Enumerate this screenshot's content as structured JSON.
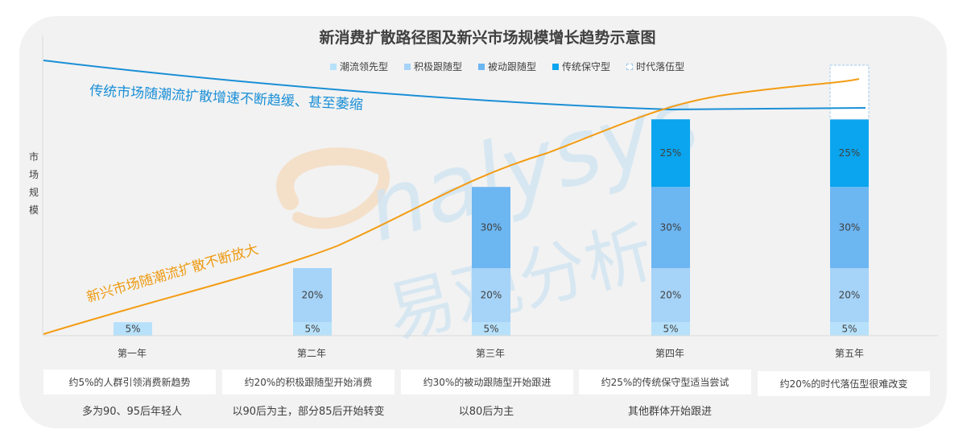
{
  "chart_data": {
    "type": "bar",
    "title": "新消费扩散路径图及新兴市场规模增长趋势示意图",
    "ylabel": "市场规模",
    "categories": [
      "第一年",
      "第二年",
      "第三年",
      "第四年",
      "第五年"
    ],
    "ylim": [
      0,
      100
    ],
    "series": [
      {
        "name": "潮流领先型",
        "color": "#b7e1fa",
        "values": [
          5,
          5,
          5,
          5,
          5
        ],
        "labels": [
          "5%",
          "5%",
          "5%",
          "5%",
          "5%"
        ]
      },
      {
        "name": "积极跟随型",
        "color": "#a6d3f8",
        "values": [
          0,
          20,
          20,
          20,
          20
        ],
        "labels": [
          "",
          "20%",
          "20%",
          "20%",
          "20%"
        ]
      },
      {
        "name": "被动跟随型",
        "color": "#6cb6f2",
        "values": [
          0,
          0,
          30,
          30,
          30
        ],
        "labels": [
          "",
          "",
          "30%",
          "30%",
          "30%"
        ]
      },
      {
        "name": "传统保守型",
        "color": "#0aa5ee",
        "values": [
          0,
          0,
          0,
          25,
          25
        ],
        "labels": [
          "",
          "",
          "",
          "25%",
          "25%"
        ]
      },
      {
        "name": "时代落伍型",
        "color": "#ffffff",
        "values": [
          0,
          0,
          0,
          0,
          20
        ],
        "labels": [
          "",
          "",
          "",
          "",
          ""
        ]
      }
    ],
    "lines": [
      {
        "name": "传统市场",
        "color": "#1a8fd6"
      },
      {
        "name": "新兴市场",
        "color": "#f39c12"
      }
    ],
    "annotations": {
      "traditional": "传统市场随潮流扩散增速不断趋缓、甚至萎缩",
      "emerging": "新兴市场随潮流扩散不断放大"
    }
  },
  "notes": [
    {
      "box": "约5%的人群引领消费新趋势",
      "sub": "多为90、95后年轻人"
    },
    {
      "box": "约20%的积极跟随型开始消费",
      "sub": "以90后为主，部分85后开始转变"
    },
    {
      "box": "约30%的被动跟随型开始跟进",
      "sub": "以80后为主"
    },
    {
      "box": "约25%的传统保守型适当尝试",
      "sub": "其他群体开始跟进"
    },
    {
      "box": "约20%的时代落伍型很难改变",
      "sub": ""
    }
  ],
  "watermark": {
    "logo": "analysys",
    "text": "易观分析"
  }
}
